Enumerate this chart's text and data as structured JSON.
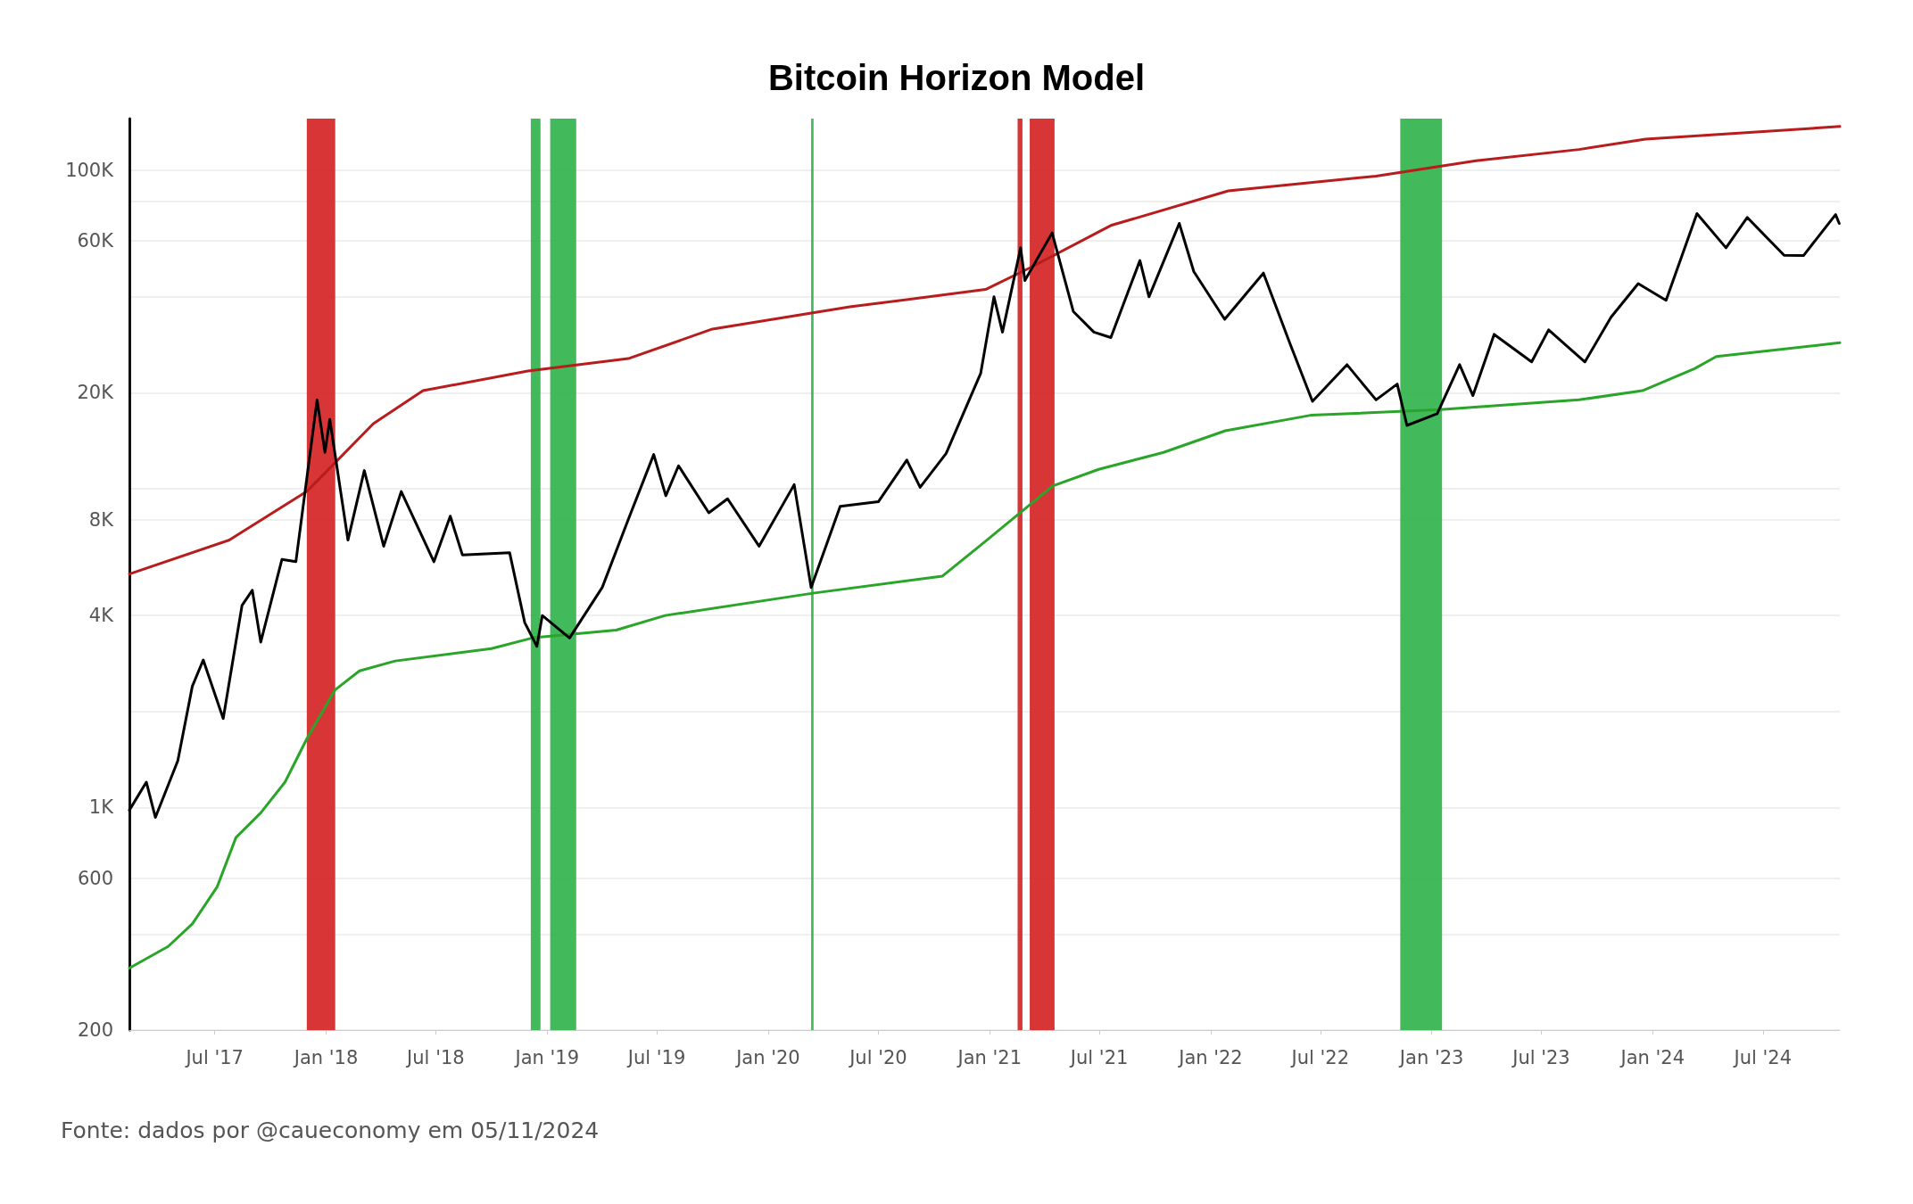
{
  "chart_data": {
    "type": "line",
    "title": "Bitcoin Horizon Model",
    "annotations": [
      "Fonte: dados por @caueconomy em 05/11/2024"
    ],
    "log": "y",
    "grid": "y",
    "marker": "none",
    "line_style": "solid",
    "xlim": [
      "2017-02-10",
      "2024-11-05"
    ],
    "xticks": [
      {
        "value": "2017-07-01",
        "label": "Jul '17"
      },
      {
        "value": "2018-01-01",
        "label": "Jan '18"
      },
      {
        "value": "2018-07-01",
        "label": "Jul '18"
      },
      {
        "value": "2019-01-01",
        "label": "Jan '19"
      },
      {
        "value": "2019-07-01",
        "label": "Jul '19"
      },
      {
        "value": "2020-01-01",
        "label": "Jan '20"
      },
      {
        "value": "2020-07-01",
        "label": "Jul '20"
      },
      {
        "value": "2021-01-01",
        "label": "Jan '21"
      },
      {
        "value": "2021-07-01",
        "label": "Jul '21"
      },
      {
        "value": "2022-01-01",
        "label": "Jan '22"
      },
      {
        "value": "2022-07-01",
        "label": "Jul '22"
      },
      {
        "value": "2023-01-01",
        "label": "Jan '23"
      },
      {
        "value": "2023-07-01",
        "label": "Jul '23"
      },
      {
        "value": "2024-01-01",
        "label": "Jan '24"
      },
      {
        "value": "2024-07-01",
        "label": "Jul '24"
      }
    ],
    "ylim": [
      200,
      145000
    ],
    "yticks": [
      200,
      {
        "value": 400,
        "label": null
      },
      600,
      {
        "value": 1000,
        "label": "1K"
      },
      {
        "value": 2000,
        "label": null
      },
      {
        "value": 4000,
        "label": "4K"
      },
      {
        "value": 8000,
        "label": "8K"
      },
      {
        "value": 10000,
        "label": null
      },
      {
        "value": 20000,
        "label": "20K"
      },
      {
        "value": 40000,
        "label": null
      },
      {
        "value": 60000,
        "label": "60K"
      },
      {
        "value": 80000,
        "label": null
      },
      {
        "value": 100000,
        "label": "100K"
      }
    ],
    "bands": [
      {
        "axis": "x",
        "from": "2017-11-30",
        "to": "2018-01-16",
        "color": "#d42020"
      },
      {
        "axis": "x",
        "from": "2018-12-05",
        "to": "2018-12-21",
        "color": "#2db34a"
      },
      {
        "axis": "x",
        "from": "2019-01-06",
        "to": "2019-02-18",
        "color": "#2db34a"
      },
      {
        "axis": "x",
        "from": "2020-03-12",
        "to": "2020-03-16",
        "color": "#2db34a"
      },
      {
        "axis": "x",
        "from": "2021-02-16",
        "to": "2021-02-24",
        "color": "#d42020"
      },
      {
        "axis": "x",
        "from": "2021-03-08",
        "to": "2021-04-18",
        "color": "#d42020"
      },
      {
        "axis": "x",
        "from": "2022-11-10",
        "to": "2023-01-18",
        "color": "#2db34a"
      }
    ],
    "series": [
      {
        "color": "#b81c1c",
        "x": [
          "2017-02-10",
          "2017-07-25",
          "2017-11-30",
          "2018-03-20",
          "2018-06-10",
          "2018-11-30",
          "2019-05-15",
          "2019-10-01",
          "2020-05-15",
          "2020-12-25",
          "2021-03-10",
          "2021-07-20",
          "2022-01-30",
          "2022-10-01",
          "2023-03-15",
          "2023-09-01",
          "2023-12-20",
          "2024-03-15",
          "2024-11-05"
        ],
        "values": [
          5400,
          6900,
          9800,
          16000,
          20300,
          23400,
          25600,
          31700,
          37200,
          42200,
          49500,
          67000,
          86000,
          95700,
          107000,
          116000,
          125000,
          128000,
          137000
        ]
      },
      {
        "color": "#2aa52a",
        "x": [
          "2017-02-10",
          "2017-04-15",
          "2017-05-25",
          "2017-07-05",
          "2017-08-05",
          "2017-09-15",
          "2017-10-25",
          "2017-11-30",
          "2018-01-16",
          "2018-02-25",
          "2018-04-25",
          "2018-10-01",
          "2018-12-10",
          "2019-04-25",
          "2019-07-15",
          "2020-03-15",
          "2020-10-15",
          "2020-12-25",
          "2021-04-15",
          "2021-06-30",
          "2021-10-15",
          "2022-01-25",
          "2022-06-15",
          "2023-01-15",
          "2023-09-01",
          "2023-12-15",
          "2024-03-10",
          "2024-04-15",
          "2024-11-05"
        ],
        "values": [
          313,
          366,
          431,
          563,
          804,
          961,
          1200,
          1640,
          2340,
          2680,
          2880,
          3150,
          3410,
          3600,
          4000,
          4700,
          5320,
          6840,
          10200,
          11500,
          13000,
          15200,
          17000,
          17700,
          19000,
          20300,
          23800,
          26000,
          28700
        ]
      },
      {
        "color": "#000000",
        "x": [
          "2017-02-10",
          "2017-03-10",
          "2017-03-25",
          "2017-05-01",
          "2017-05-25",
          "2017-06-12",
          "2017-07-15",
          "2017-08-15",
          "2017-09-01",
          "2017-09-15",
          "2017-10-20",
          "2017-11-12",
          "2017-12-17",
          "2017-12-30",
          "2018-01-07",
          "2018-02-06",
          "2018-03-05",
          "2018-04-06",
          "2018-05-05",
          "2018-06-28",
          "2018-07-25",
          "2018-08-14",
          "2018-10-31",
          "2018-11-25",
          "2018-12-15",
          "2018-12-24",
          "2019-02-07",
          "2019-04-02",
          "2019-05-15",
          "2019-06-26",
          "2019-07-16",
          "2019-08-06",
          "2019-09-25",
          "2019-10-26",
          "2019-12-17",
          "2020-02-13",
          "2020-03-12",
          "2020-04-29",
          "2020-07-01",
          "2020-08-17",
          "2020-09-08",
          "2020-10-21",
          "2020-12-17",
          "2021-01-08",
          "2021-01-22",
          "2021-02-21",
          "2021-02-28",
          "2021-04-14",
          "2021-05-19",
          "2021-06-22",
          "2021-07-20",
          "2021-09-06",
          "2021-09-21",
          "2021-11-10",
          "2021-12-04",
          "2022-01-24",
          "2022-03-29",
          "2022-05-12",
          "2022-06-18",
          "2022-08-14",
          "2022-10-01",
          "2022-11-05",
          "2022-11-21",
          "2023-01-10",
          "2023-02-16",
          "2023-03-10",
          "2023-04-14",
          "2023-06-15",
          "2023-07-13",
          "2023-09-11",
          "2023-10-24",
          "2023-12-08",
          "2024-01-23",
          "2024-03-14",
          "2024-05-01",
          "2024-06-05",
          "2024-08-05",
          "2024-09-06",
          "2024-10-29",
          "2024-11-04"
        ],
        "values": [
          980,
          1200,
          930,
          1400,
          2400,
          2900,
          1900,
          4300,
          4800,
          3300,
          6000,
          5900,
          19000,
          13000,
          16500,
          6900,
          11400,
          6600,
          9800,
          5900,
          8200,
          6200,
          6300,
          3800,
          3200,
          4000,
          3400,
          4900,
          8000,
          12800,
          9500,
          11800,
          8400,
          9300,
          6600,
          10300,
          4900,
          8800,
          9100,
          12300,
          10100,
          12900,
          23000,
          40000,
          31000,
          57000,
          45000,
          63500,
          36000,
          31000,
          29800,
          52000,
          40000,
          68000,
          48000,
          34000,
          47500,
          28500,
          18800,
          24500,
          19000,
          21300,
          15800,
          17200,
          24500,
          19600,
          30500,
          25000,
          31500,
          25000,
          34500,
          44000,
          39000,
          73000,
          57000,
          71000,
          54000,
          53900,
          72500,
          68000
        ]
      }
    ]
  }
}
